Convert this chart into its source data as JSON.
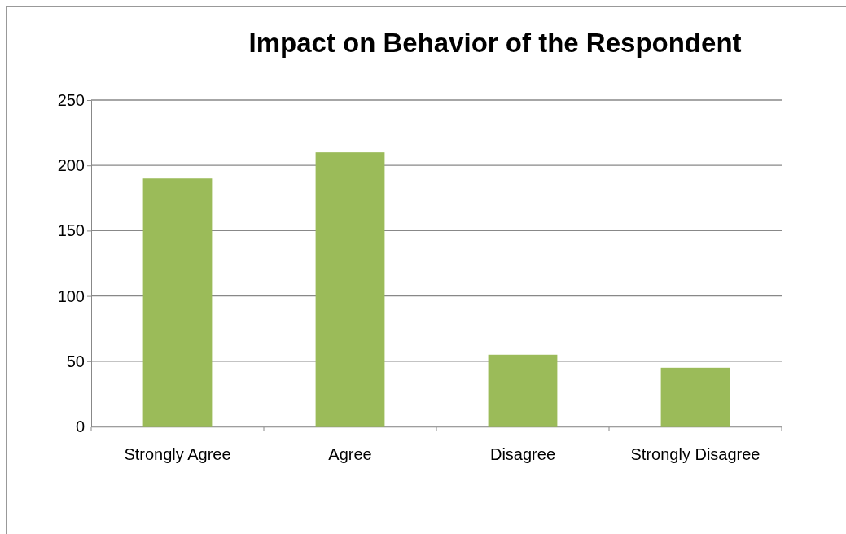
{
  "chart_data": {
    "type": "bar",
    "title": "Impact on Behavior of the Respondent",
    "categories": [
      "Strongly Agree",
      "Agree",
      "Disagree",
      "Strongly Disagree"
    ],
    "values": [
      190,
      210,
      55,
      45
    ],
    "color": "#9bbb59",
    "ylim": [
      0,
      250
    ],
    "yticks": [
      0,
      50,
      100,
      150,
      200,
      250
    ],
    "grid": "y"
  }
}
